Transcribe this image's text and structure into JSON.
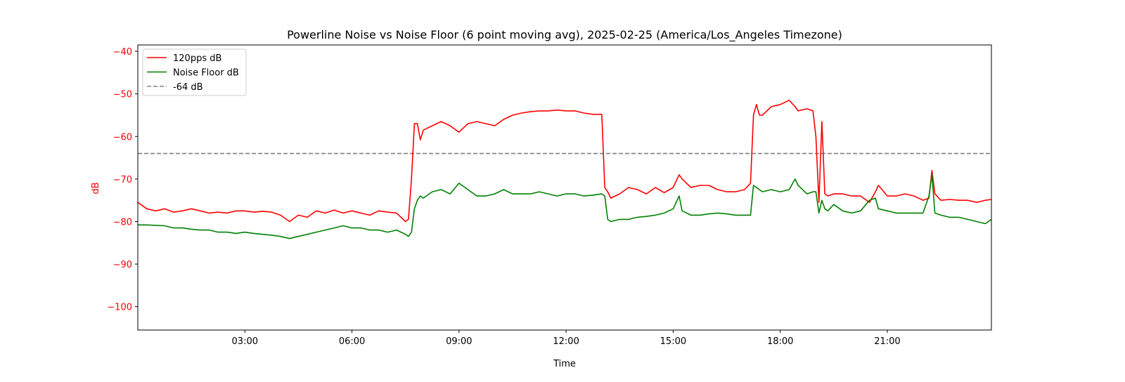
{
  "chart_data": {
    "type": "line",
    "title": "Powerline Noise vs Noise Floor (6 point moving avg), 2025-02-25 (America/Los_Angeles Timezone)",
    "xlabel": "Time",
    "ylabel": "dB",
    "xlim": [
      "00:00",
      "23:55"
    ],
    "ylim": [
      -105.5,
      -38.5
    ],
    "x_ticks": [
      "03:00",
      "06:00",
      "09:00",
      "12:00",
      "15:00",
      "18:00",
      "21:00"
    ],
    "y_ticks": [
      -40,
      -50,
      -60,
      -70,
      -80,
      -90,
      -100
    ],
    "y_tick_labels": [
      "−40",
      "−50",
      "−60",
      "−70",
      "−80",
      "−90",
      "−100"
    ],
    "grid": false,
    "legend_position": "top-left",
    "colors": {
      "axis_text": "#ff0000",
      "series_120pps": "#ff0000",
      "series_noise_floor": "#008000",
      "reference": "#808080",
      "frame": "#000000"
    },
    "series": [
      {
        "name": "120pps dB",
        "x": [
          "00:00",
          "00:15",
          "00:30",
          "00:45",
          "01:00",
          "01:15",
          "01:30",
          "01:45",
          "02:00",
          "02:15",
          "02:30",
          "02:45",
          "03:00",
          "03:15",
          "03:30",
          "03:45",
          "04:00",
          "04:15",
          "04:30",
          "04:45",
          "05:00",
          "05:15",
          "05:30",
          "05:45",
          "06:00",
          "06:15",
          "06:30",
          "06:45",
          "07:00",
          "07:15",
          "07:30",
          "07:35",
          "07:40",
          "07:45",
          "07:50",
          "07:55",
          "08:00",
          "08:15",
          "08:30",
          "08:45",
          "09:00",
          "09:15",
          "09:30",
          "09:45",
          "10:00",
          "10:15",
          "10:30",
          "10:45",
          "11:00",
          "11:15",
          "11:30",
          "11:45",
          "12:00",
          "12:15",
          "12:30",
          "12:45",
          "13:00",
          "13:05",
          "13:10",
          "13:15",
          "13:30",
          "13:45",
          "14:00",
          "14:15",
          "14:30",
          "14:45",
          "15:00",
          "15:10",
          "15:15",
          "15:30",
          "15:45",
          "16:00",
          "16:15",
          "16:30",
          "16:45",
          "17:00",
          "17:10",
          "17:15",
          "17:20",
          "17:25",
          "17:30",
          "17:45",
          "18:00",
          "18:15",
          "18:25",
          "18:30",
          "18:45",
          "18:55",
          "19:00",
          "19:05",
          "19:10",
          "19:15",
          "19:20",
          "19:30",
          "19:45",
          "20:00",
          "20:15",
          "20:30",
          "20:40",
          "20:45",
          "21:00",
          "21:15",
          "21:30",
          "21:45",
          "22:00",
          "22:10",
          "22:15",
          "22:20",
          "22:30",
          "22:45",
          "23:00",
          "23:15",
          "23:30",
          "23:45",
          "23:55"
        ],
        "values": [
          -75.5,
          -77,
          -77.5,
          -77,
          -77.8,
          -77.5,
          -77,
          -77.5,
          -78,
          -77.8,
          -78,
          -77.5,
          -77.5,
          -77.8,
          -77.6,
          -77.8,
          -78.5,
          -80,
          -78.5,
          -79,
          -77.5,
          -78,
          -77.3,
          -78,
          -77.5,
          -78,
          -78.5,
          -77.5,
          -77.8,
          -78,
          -80,
          -79.5,
          -70,
          -57,
          -57,
          -60.8,
          -58.5,
          -57.5,
          -56.5,
          -57.5,
          -59,
          -57,
          -56.5,
          -57,
          -57.5,
          -56,
          -55,
          -54.5,
          -54.2,
          -54,
          -54,
          -53.8,
          -54,
          -54,
          -54.5,
          -54.8,
          -54.8,
          -72,
          -73,
          -74.5,
          -73.5,
          -72,
          -72.5,
          -73.5,
          -72,
          -73.2,
          -72,
          -69,
          -70,
          -72,
          -71.5,
          -71.5,
          -72.5,
          -73,
          -73,
          -72.5,
          -71,
          -55,
          -52.5,
          -55,
          -55,
          -53,
          -52.5,
          -51.5,
          -53,
          -54,
          -53.5,
          -54,
          -60,
          -75.5,
          -56.5,
          -73.5,
          -74,
          -73.5,
          -73.5,
          -74,
          -74,
          -75.5,
          -73,
          -71.5,
          -74,
          -74,
          -73.5,
          -74,
          -75,
          -74.5,
          -68,
          -73.5,
          -75,
          -74.8,
          -75,
          -75,
          -75.5,
          -75,
          -74.8
        ]
      },
      {
        "name": "Noise Floor dB",
        "x": [
          "00:00",
          "00:15",
          "00:30",
          "00:45",
          "01:00",
          "01:15",
          "01:30",
          "01:45",
          "02:00",
          "02:15",
          "02:30",
          "02:45",
          "03:00",
          "03:15",
          "03:30",
          "03:45",
          "04:00",
          "04:15",
          "04:30",
          "04:45",
          "05:00",
          "05:15",
          "05:30",
          "05:45",
          "06:00",
          "06:15",
          "06:30",
          "06:45",
          "07:00",
          "07:15",
          "07:30",
          "07:35",
          "07:40",
          "07:45",
          "07:50",
          "07:55",
          "08:00",
          "08:15",
          "08:30",
          "08:45",
          "09:00",
          "09:15",
          "09:30",
          "09:45",
          "10:00",
          "10:15",
          "10:30",
          "10:45",
          "11:00",
          "11:15",
          "11:30",
          "11:45",
          "12:00",
          "12:15",
          "12:30",
          "12:45",
          "13:00",
          "13:05",
          "13:10",
          "13:15",
          "13:30",
          "13:45",
          "14:00",
          "14:15",
          "14:30",
          "14:45",
          "15:00",
          "15:10",
          "15:15",
          "15:30",
          "15:45",
          "16:00",
          "16:15",
          "16:30",
          "16:45",
          "17:00",
          "17:10",
          "17:15",
          "17:20",
          "17:25",
          "17:30",
          "17:45",
          "18:00",
          "18:15",
          "18:25",
          "18:30",
          "18:45",
          "18:55",
          "19:00",
          "19:05",
          "19:10",
          "19:15",
          "19:20",
          "19:30",
          "19:45",
          "20:00",
          "20:15",
          "20:30",
          "20:40",
          "20:45",
          "21:00",
          "21:15",
          "21:30",
          "21:45",
          "22:00",
          "22:10",
          "22:15",
          "22:20",
          "22:30",
          "22:45",
          "23:00",
          "23:15",
          "23:30",
          "23:45",
          "23:55"
        ],
        "values": [
          -80.8,
          -80.8,
          -80.9,
          -81,
          -81.5,
          -81.5,
          -81.8,
          -82,
          -82,
          -82.5,
          -82.5,
          -82.8,
          -82.5,
          -82.8,
          -83,
          -83.2,
          -83.5,
          -84,
          -83.5,
          -83,
          -82.5,
          -82,
          -81.5,
          -81,
          -81.5,
          -81.5,
          -82,
          -82,
          -82.5,
          -82,
          -83,
          -83.5,
          -82.5,
          -77,
          -75,
          -74,
          -74.5,
          -73,
          -72.5,
          -73.5,
          -71,
          -72.5,
          -74,
          -74,
          -73.5,
          -72.5,
          -73.5,
          -73.5,
          -73.5,
          -73,
          -73.5,
          -74,
          -73.5,
          -73.5,
          -74,
          -73.8,
          -73.5,
          -74,
          -79.5,
          -80,
          -79.5,
          -79.5,
          -79,
          -78.8,
          -78.5,
          -78,
          -77,
          -74,
          -77.5,
          -78.5,
          -78.5,
          -78.2,
          -78,
          -78.2,
          -78.5,
          -78.5,
          -78.5,
          -71.5,
          -72,
          -72.5,
          -73,
          -72.5,
          -73,
          -72.5,
          -70,
          -71.5,
          -73.5,
          -73,
          -73,
          -78,
          -75,
          -77,
          -77.5,
          -76,
          -77.5,
          -78,
          -77.5,
          -75,
          -74.5,
          -77,
          -77.5,
          -78,
          -78,
          -78,
          -78,
          -74,
          -69,
          -78,
          -78.5,
          -79,
          -79,
          -79.5,
          -80,
          -80.5,
          -79.5
        ]
      }
    ],
    "reference_lines": [
      {
        "name": "-64 dB",
        "y": -64
      }
    ],
    "legend": [
      {
        "label": "120pps dB",
        "style": "solid",
        "color": "#ff0000"
      },
      {
        "label": "Noise Floor dB",
        "style": "solid",
        "color": "#008000"
      },
      {
        "label": "-64 dB",
        "style": "dashed",
        "color": "#808080"
      }
    ]
  }
}
